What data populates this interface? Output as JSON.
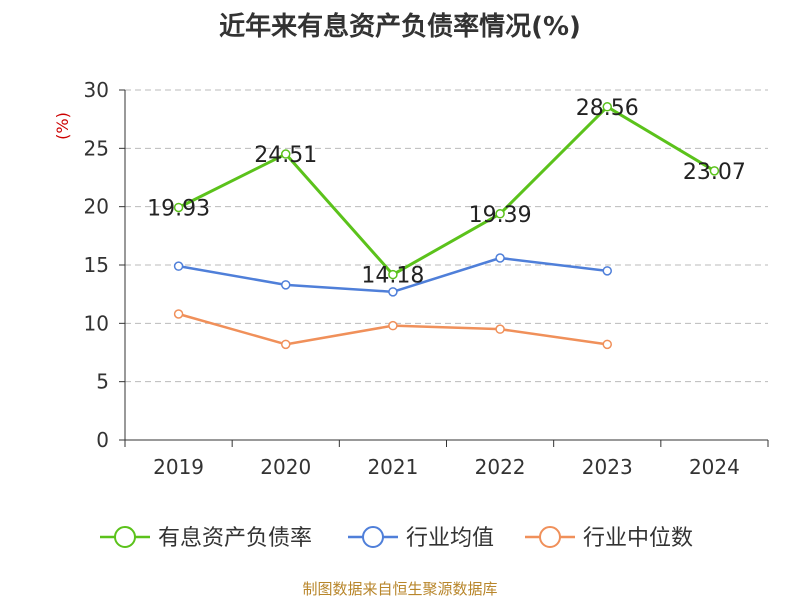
{
  "chart_data": {
    "type": "line",
    "title": "近年来有息资产负债率情况(%)",
    "ylabel": "(%)",
    "xlabel": "",
    "categories": [
      "2019",
      "2020",
      "2021",
      "2022",
      "2023",
      "2024"
    ],
    "ylim": [
      0,
      30
    ],
    "yticks": [
      "0",
      "5",
      "10",
      "15",
      "20",
      "25",
      "30"
    ],
    "grid": true,
    "legend_position": "bottom",
    "series": [
      {
        "name": "有息资产负债率",
        "color": "#5bc21b",
        "values": [
          19.93,
          24.51,
          14.18,
          19.39,
          28.56,
          23.07
        ],
        "labels": [
          "19.93",
          "24.51",
          "14.18",
          "19.39",
          "28.56",
          "23.07"
        ]
      },
      {
        "name": "行业均值",
        "color": "#4f7fd9",
        "values": [
          14.9,
          13.3,
          12.7,
          15.6,
          14.5,
          null
        ]
      },
      {
        "name": "行业中位数",
        "color": "#f0905a",
        "values": [
          10.8,
          8.2,
          9.8,
          9.5,
          8.2,
          null
        ]
      }
    ]
  },
  "source": "制图数据来自恒生聚源数据库"
}
